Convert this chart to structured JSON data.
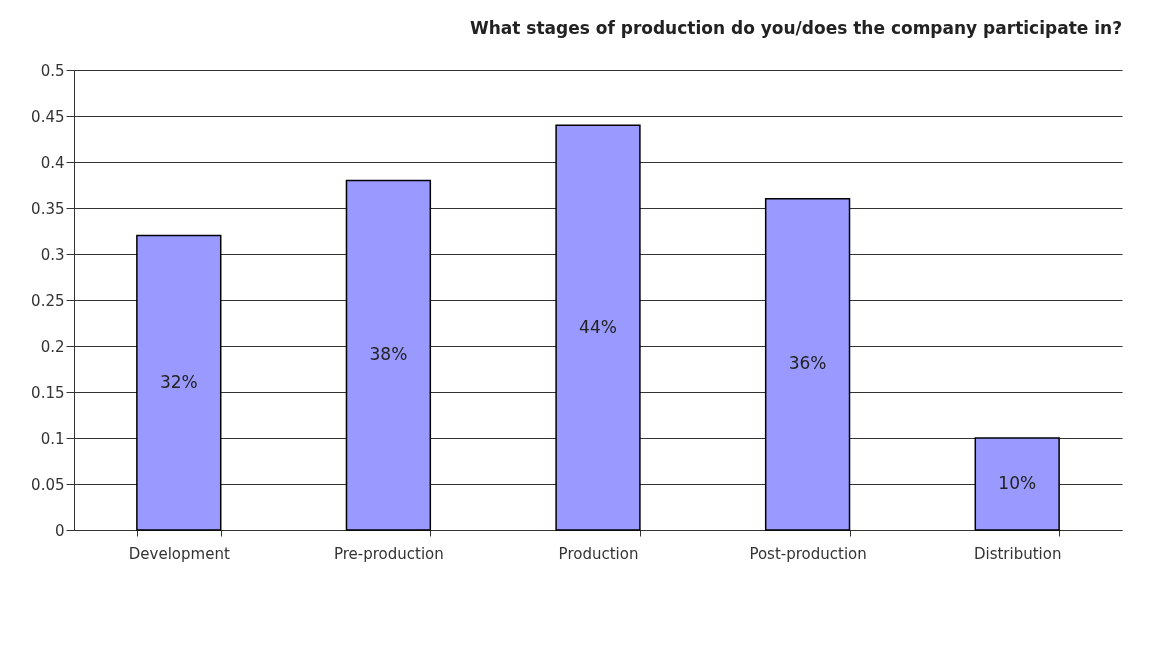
{
  "chart_data": {
    "type": "bar",
    "title": "What stages of production do you/does the company participate in?",
    "categories": [
      "Development",
      "Pre-production",
      "Production",
      "Post-production",
      "Distribution"
    ],
    "values": [
      0.32,
      0.38,
      0.44,
      0.36,
      0.1
    ],
    "value_labels": [
      "32%",
      "38%",
      "44%",
      "36%",
      "10%"
    ],
    "color": "#9999ff",
    "ylim": [
      0,
      0.5
    ],
    "yticks": [
      0,
      0.05,
      0.1,
      0.15,
      0.2,
      0.25,
      0.3,
      0.35,
      0.4,
      0.45,
      0.5
    ],
    "grid": "y"
  }
}
